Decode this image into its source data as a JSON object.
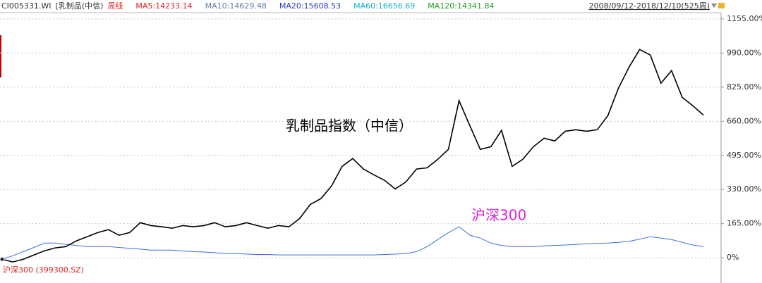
{
  "chart_data": {
    "type": "line",
    "header_items": [
      {
        "text": "CI005331.WI",
        "color": "#333333"
      },
      {
        "text": "[乳制品(中信)",
        "color": "#333333"
      },
      {
        "text": "周线",
        "color": "#e02020"
      },
      {
        "text": "MA5:14233.14",
        "color": "#e02020"
      },
      {
        "text": "MA10:14629.48",
        "color": "#5a7fb0"
      },
      {
        "text": "MA20:15608.53",
        "color": "#2040d0"
      },
      {
        "text": "MA60:16656.69",
        "color": "#10b0d0"
      },
      {
        "text": "MA120:14341.84",
        "color": "#20a020"
      }
    ],
    "date_range": "2008/09/12-2018/12/10(525周)",
    "footer_label": "沪深300 (399300.SZ)",
    "annotations": [
      {
        "text": "乳制品指数（中信）",
        "color": "#000000"
      },
      {
        "text": "沪深300",
        "color": "#e020e0"
      }
    ],
    "categories": [
      null,
      null,
      null,
      null,
      null,
      null,
      null,
      null,
      null,
      null,
      null,
      null,
      null,
      null,
      null,
      null,
      null,
      null,
      null,
      null,
      null,
      null,
      null,
      null,
      null,
      null,
      null,
      null,
      null,
      null,
      null,
      null,
      null,
      null,
      null,
      null,
      null,
      null,
      null,
      null,
      null,
      null,
      null,
      null,
      null,
      null,
      null,
      null,
      null,
      null,
      null,
      null,
      null,
      null,
      null,
      null,
      null,
      null,
      null,
      null,
      null,
      null,
      null,
      null,
      null,
      null,
      null
    ],
    "series": [
      {
        "name": "乳制品指数（中信）",
        "color": "#000000",
        "values": [
          -7,
          -20,
          -7,
          14,
          34,
          48,
          54,
          82,
          102,
          122,
          136,
          109,
          122,
          170,
          156,
          150,
          143,
          156,
          150,
          156,
          170,
          150,
          156,
          170,
          156,
          143,
          156,
          150,
          190,
          258,
          286,
          347,
          442,
          480,
          429,
          401,
          374,
          333,
          367,
          429,
          435,
          476,
          524,
          760,
          640,
          524,
          537,
          616,
          442,
          476,
          537,
          578,
          565,
          612,
          619,
          612,
          619,
          687,
          820,
          922,
          1007,
          980,
          844,
          905,
          776,
          735,
          690
        ]
      },
      {
        "name": "沪深300",
        "color": "#3a6ee0",
        "values": [
          -7,
          10,
          30,
          50,
          71,
          71,
          65,
          60,
          54,
          54,
          54,
          50,
          46,
          42,
          37,
          37,
          37,
          33,
          30,
          28,
          25,
          20,
          20,
          18,
          16,
          16,
          14,
          14,
          14,
          14,
          14,
          14,
          14,
          14,
          14,
          14,
          16,
          18,
          20,
          30,
          54,
          88,
          122,
          150,
          110,
          95,
          71,
          60,
          54,
          54,
          54,
          58,
          60,
          62,
          65,
          68,
          70,
          71,
          75,
          80,
          90,
          102,
          95,
          88,
          75,
          62,
          54
        ]
      }
    ],
    "ylim": [
      -115,
      1185
    ],
    "yticks": [
      {
        "value": 0,
        "label": "0%"
      },
      {
        "value": 165,
        "label": "165.00%"
      },
      {
        "value": 330,
        "label": "330.00%"
      },
      {
        "value": 495,
        "label": "495.00%"
      },
      {
        "value": 660,
        "label": "660.00%"
      },
      {
        "value": 825,
        "label": "825.00%"
      },
      {
        "value": 990,
        "label": "990.00%"
      },
      {
        "value": 1155,
        "label": "1155.00%"
      }
    ],
    "grid": true
  }
}
